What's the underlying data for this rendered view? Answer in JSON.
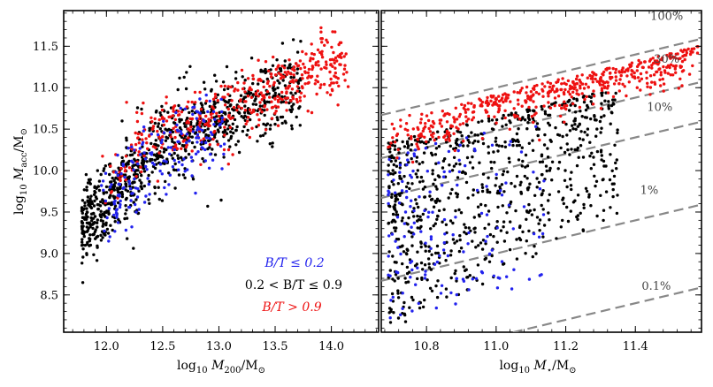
{
  "chart_data": [
    {
      "type": "scatter",
      "title": "",
      "xlabel": "log10 M200/M⊙",
      "ylabel": "log10 Macc/M⊙",
      "xlim": [
        11.62,
        14.42
      ],
      "ylim": [
        8.05,
        11.93
      ],
      "xticks": [
        "12.0",
        "12.5",
        "13.0",
        "13.5",
        "14.0"
      ],
      "yticks": [
        "8.5",
        "9.0",
        "9.5",
        "10.0",
        "10.5",
        "11.0",
        "11.5"
      ],
      "legend": {
        "placement": "bottom-right",
        "entries": [
          {
            "label": "B/T ≤ 0.2",
            "color": "#2222ee"
          },
          {
            "label": "0.2 < B/T ≤ 0.9",
            "color": "#000000"
          },
          {
            "label": "B/T > 0.9",
            "color": "#ee1111"
          }
        ]
      },
      "series": [
        {
          "name": "B/T ≤ 0.2",
          "color": "#2222ee",
          "approx_count": 180,
          "x_range": [
            11.95,
            13.1
          ],
          "trend": "y ≈ 10.6 - 0.95*(13 - x)^1.6"
        },
        {
          "name": "0.2 < B/T ≤ 0.9",
          "color": "#000000",
          "approx_count": 900,
          "x_range": [
            11.8,
            13.7
          ],
          "trend": "y ≈ 10.6 - 0.95*(13 - x)^1.6"
        },
        {
          "name": "B/T > 0.9",
          "color": "#ee1111",
          "approx_count": 450,
          "x_range": [
            11.95,
            14.15
          ],
          "trend": "y ≈ 10.6 + 0.63*(x - 13)"
        }
      ],
      "grid": false
    },
    {
      "type": "scatter",
      "title": "",
      "xlabel": "log10 M⋆/M⊙",
      "ylabel": "",
      "xlim": [
        10.67,
        11.59
      ],
      "ylim": [
        8.05,
        11.93
      ],
      "xticks": [
        "10.8",
        "11.0",
        "11.2",
        "11.4"
      ],
      "yticks": [],
      "reference_lines": [
        {
          "label": "100%",
          "offset_dex": 0.0
        },
        {
          "label": "30%",
          "offset_dex": -0.52
        },
        {
          "label": "10%",
          "offset_dex": -1.0
        },
        {
          "label": "1%",
          "offset_dex": -2.0
        },
        {
          "label": "0.1%",
          "offset_dex": -3.0
        }
      ],
      "series": [
        {
          "name": "B/T ≤ 0.2",
          "color": "#2222ee",
          "approx_count": 160,
          "x_range": [
            10.7,
            11.15
          ]
        },
        {
          "name": "0.2 < B/T ≤ 0.9",
          "color": "#000000",
          "approx_count": 800,
          "x_range": [
            10.7,
            11.35
          ]
        },
        {
          "name": "B/T > 0.9",
          "color": "#ee1111",
          "approx_count": 500,
          "x_range": [
            10.7,
            11.58
          ],
          "trend": "y ≈ x - 0.05 to x - 0.45"
        }
      ],
      "grid": false
    }
  ]
}
